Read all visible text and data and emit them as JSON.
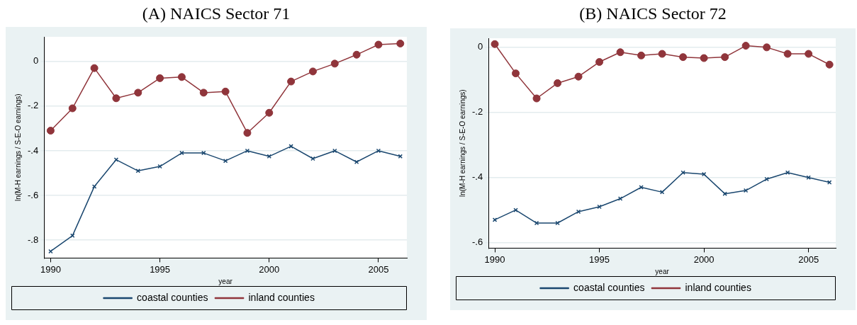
{
  "chart_data": [
    {
      "type": "line",
      "title": "(A) NAICS Sector 71",
      "xlabel": "year",
      "ylabel": "ln(M-H earnings / S-E-O earnings)",
      "x": [
        1990,
        1991,
        1992,
        1993,
        1994,
        1995,
        1996,
        1997,
        1998,
        1999,
        2000,
        2001,
        2002,
        2003,
        2004,
        2005,
        2006
      ],
      "series": [
        {
          "name": "coastal counties",
          "color": "#1a476f",
          "marker": "cross",
          "values": [
            -0.85,
            -0.78,
            -0.56,
            -0.44,
            -0.49,
            -0.47,
            -0.41,
            -0.41,
            -0.445,
            -0.4,
            -0.425,
            -0.38,
            -0.435,
            -0.4,
            -0.45,
            -0.4,
            -0.425
          ]
        },
        {
          "name": "inland counties",
          "color": "#90353b",
          "marker": "circle",
          "values": [
            -0.31,
            -0.21,
            -0.03,
            -0.165,
            -0.14,
            -0.075,
            -0.07,
            -0.14,
            -0.135,
            -0.32,
            -0.23,
            -0.09,
            -0.045,
            -0.01,
            0.03,
            0.075,
            0.08
          ]
        }
      ],
      "xlim": [
        1989.7,
        2006.3
      ],
      "xticks": [
        1990,
        1995,
        2000,
        2005
      ],
      "ylim": [
        -0.88,
        0.11
      ],
      "yticks": [
        {
          "value": -0.8,
          "label": "-.8"
        },
        {
          "value": -0.6,
          "label": "-.6"
        },
        {
          "value": -0.4,
          "label": "-.4"
        },
        {
          "value": -0.2,
          "label": "-.2"
        },
        0
      ],
      "grid": "y",
      "legend": "bottom",
      "line_style": "solid"
    },
    {
      "type": "line",
      "title": "(B) NAICS Sector 72",
      "xlabel": "year",
      "ylabel": "ln(M-H earnings / S-E-O earnings)",
      "x": [
        1990,
        1991,
        1992,
        1993,
        1994,
        1995,
        1996,
        1997,
        1998,
        1999,
        2000,
        2001,
        2002,
        2003,
        2004,
        2005,
        2006
      ],
      "series": [
        {
          "name": "coastal counties",
          "color": "#1a476f",
          "marker": "cross",
          "values": [
            -0.53,
            -0.5,
            -0.54,
            -0.54,
            -0.505,
            -0.49,
            -0.465,
            -0.43,
            -0.445,
            -0.385,
            -0.39,
            -0.45,
            -0.44,
            -0.405,
            -0.385,
            -0.4,
            -0.415
          ]
        },
        {
          "name": "inland counties",
          "color": "#90353b",
          "marker": "circle",
          "values": [
            0.01,
            -0.08,
            -0.157,
            -0.11,
            -0.09,
            -0.045,
            -0.015,
            -0.025,
            -0.02,
            -0.03,
            -0.033,
            -0.03,
            0.005,
            0,
            -0.02,
            -0.02,
            -0.053
          ]
        }
      ],
      "xlim": [
        1989.7,
        2006.3
      ],
      "xticks": [
        1990,
        1995,
        2000,
        2005
      ],
      "ylim": [
        -0.617,
        0.028
      ],
      "yticks": [
        {
          "value": -0.6,
          "label": "-.6"
        },
        {
          "value": -0.4,
          "label": "-.4"
        },
        {
          "value": -0.2,
          "label": "-.2"
        },
        0
      ],
      "grid": "y",
      "legend": "bottom",
      "line_style": "solid"
    }
  ]
}
